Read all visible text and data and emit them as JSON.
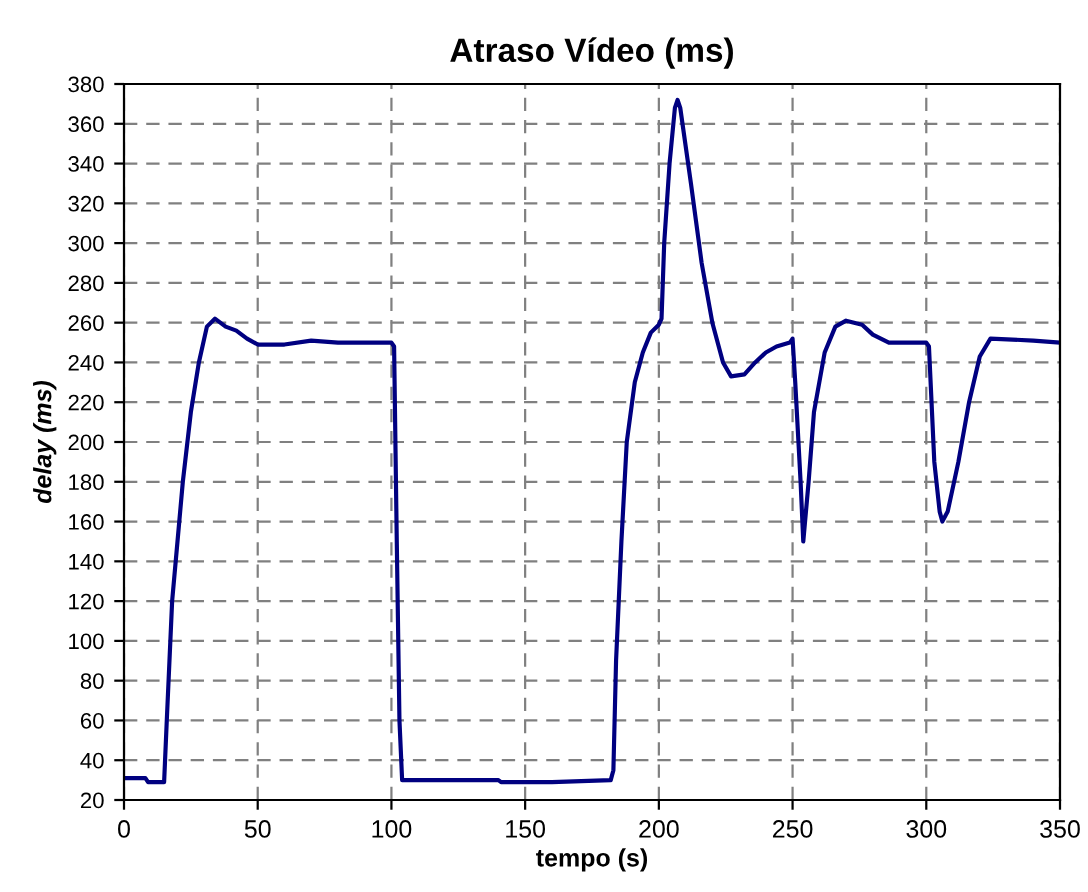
{
  "chart_data": {
    "type": "line",
    "title": "Atraso Vídeo (ms)",
    "xlabel": "tempo (s)",
    "ylabel": "delay (ms)",
    "xlim": [
      0,
      350
    ],
    "xticks": [
      0,
      50,
      100,
      150,
      200,
      250,
      300,
      350
    ],
    "ylim": [
      20,
      380
    ],
    "yticks": [
      20,
      40,
      60,
      80,
      100,
      120,
      140,
      160,
      180,
      200,
      220,
      240,
      260,
      280,
      300,
      320,
      340,
      360,
      380
    ],
    "grid": true,
    "line_style": "solid",
    "marker": "none",
    "series": [
      {
        "color": "#000080",
        "x": [
          0,
          8,
          9,
          15,
          16,
          17,
          18,
          20,
          22,
          25,
          28,
          31,
          34,
          38,
          42,
          46,
          50,
          60,
          70,
          80,
          90,
          100,
          101,
          102,
          103,
          104,
          120,
          140,
          141,
          160,
          182,
          183,
          184,
          186,
          188,
          191,
          194,
          197,
          200,
          201,
          202,
          204,
          206,
          207,
          208,
          212,
          216,
          220,
          224,
          227,
          232,
          236,
          240,
          244,
          249,
          250,
          251,
          253,
          254,
          256,
          258,
          262,
          266,
          270,
          276,
          280,
          286,
          300,
          301,
          303,
          305,
          306,
          308,
          312,
          316,
          320,
          324,
          340,
          350
        ],
        "values": [
          31,
          31,
          29,
          29,
          60,
          90,
          120,
          150,
          180,
          215,
          240,
          258,
          262,
          258,
          256,
          252,
          249,
          249,
          251,
          250,
          250,
          250,
          248,
          150,
          60,
          30,
          30,
          30,
          29,
          29,
          30,
          35,
          90,
          150,
          200,
          230,
          245,
          255,
          259,
          262,
          300,
          340,
          368,
          372,
          368,
          330,
          290,
          260,
          240,
          233,
          234,
          240,
          245,
          248,
          250,
          252,
          230,
          180,
          150,
          180,
          215,
          245,
          258,
          261,
          259,
          254,
          250,
          250,
          248,
          190,
          165,
          160,
          165,
          190,
          220,
          243,
          252,
          251,
          250
        ]
      }
    ]
  }
}
